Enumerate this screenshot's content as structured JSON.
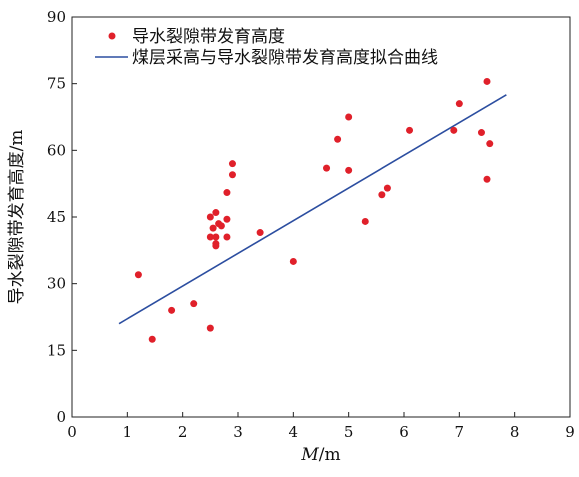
{
  "chart_data": {
    "type": "scatter",
    "xlabel_italic": "M",
    "xlabel_unit": "/m",
    "ylabel": "导水裂隙带发育高度/m",
    "xlim": [
      0,
      9
    ],
    "ylim": [
      0,
      90
    ],
    "x_ticks": [
      0,
      1,
      2,
      3,
      4,
      5,
      6,
      7,
      8,
      9
    ],
    "y_ticks": [
      0,
      15,
      30,
      45,
      60,
      75,
      90
    ],
    "grid": false,
    "legend_position": "top-left",
    "series": [
      {
        "name": "导水裂隙带发育高度",
        "type": "scatter",
        "color": "#e0202a",
        "points": [
          [
            1.2,
            32
          ],
          [
            1.45,
            17.5
          ],
          [
            1.8,
            24
          ],
          [
            2.2,
            25.5
          ],
          [
            2.5,
            20
          ],
          [
            2.5,
            40.5
          ],
          [
            2.5,
            45
          ],
          [
            2.55,
            42.5
          ],
          [
            2.6,
            46
          ],
          [
            2.6,
            40.5
          ],
          [
            2.6,
            39
          ],
          [
            2.6,
            38.5
          ],
          [
            2.65,
            43.5
          ],
          [
            2.7,
            43
          ],
          [
            2.8,
            40.5
          ],
          [
            2.8,
            44.5
          ],
          [
            2.8,
            50.5
          ],
          [
            2.9,
            57
          ],
          [
            2.9,
            54.5
          ],
          [
            3.4,
            41.5
          ],
          [
            4.0,
            35
          ],
          [
            4.6,
            56
          ],
          [
            4.8,
            62.5
          ],
          [
            5.0,
            67.5
          ],
          [
            5.0,
            55.5
          ],
          [
            5.3,
            44
          ],
          [
            5.6,
            50
          ],
          [
            5.7,
            51.5
          ],
          [
            6.1,
            64.5
          ],
          [
            6.9,
            64.5
          ],
          [
            7.0,
            70.5
          ],
          [
            7.4,
            64
          ],
          [
            7.5,
            75.5
          ],
          [
            7.5,
            53.5
          ],
          [
            7.55,
            61.5
          ]
        ]
      },
      {
        "name": "煤层采高与导水裂隙带发育高度拟合曲线",
        "type": "line",
        "color": "#2c4ea0",
        "points": [
          [
            0.85,
            21
          ],
          [
            7.85,
            72.5
          ]
        ]
      }
    ]
  }
}
